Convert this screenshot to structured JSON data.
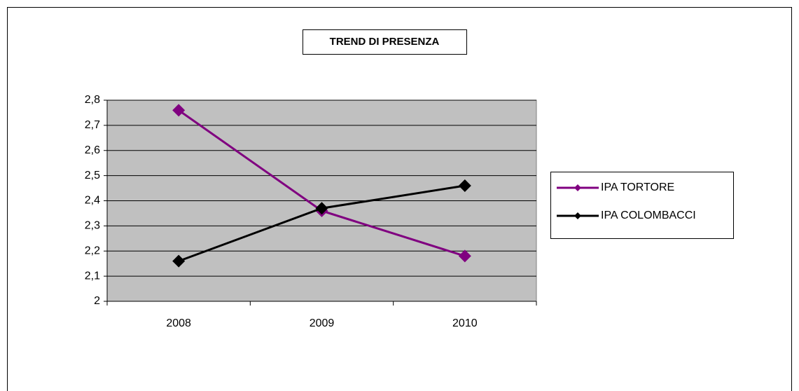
{
  "chart_data": {
    "type": "line",
    "title": "TREND DI PRESENZA",
    "categories": [
      "2008",
      "2009",
      "2010"
    ],
    "series": [
      {
        "name": "IPA TORTORE",
        "color": "#800080",
        "values": [
          2.76,
          2.36,
          2.18
        ]
      },
      {
        "name": "IPA COLOMBACCI",
        "color": "#000000",
        "values": [
          2.16,
          2.37,
          2.46
        ]
      }
    ],
    "ylim": [
      2,
      2.8
    ],
    "yticks": [
      2,
      {
        "value": 2.1,
        "label": "2,1"
      },
      {
        "value": 2.2,
        "label": "2,2"
      },
      {
        "value": 2.3,
        "label": "2,3"
      },
      {
        "value": 2.4,
        "label": "2,4"
      },
      {
        "value": 2.5,
        "label": "2,5"
      },
      {
        "value": 2.6,
        "label": "2,6"
      },
      {
        "value": 2.7,
        "label": "2,7"
      },
      {
        "value": 2.8,
        "label": "2,8"
      }
    ],
    "grid": true,
    "legend": "right",
    "background": "#c0c0c0"
  }
}
